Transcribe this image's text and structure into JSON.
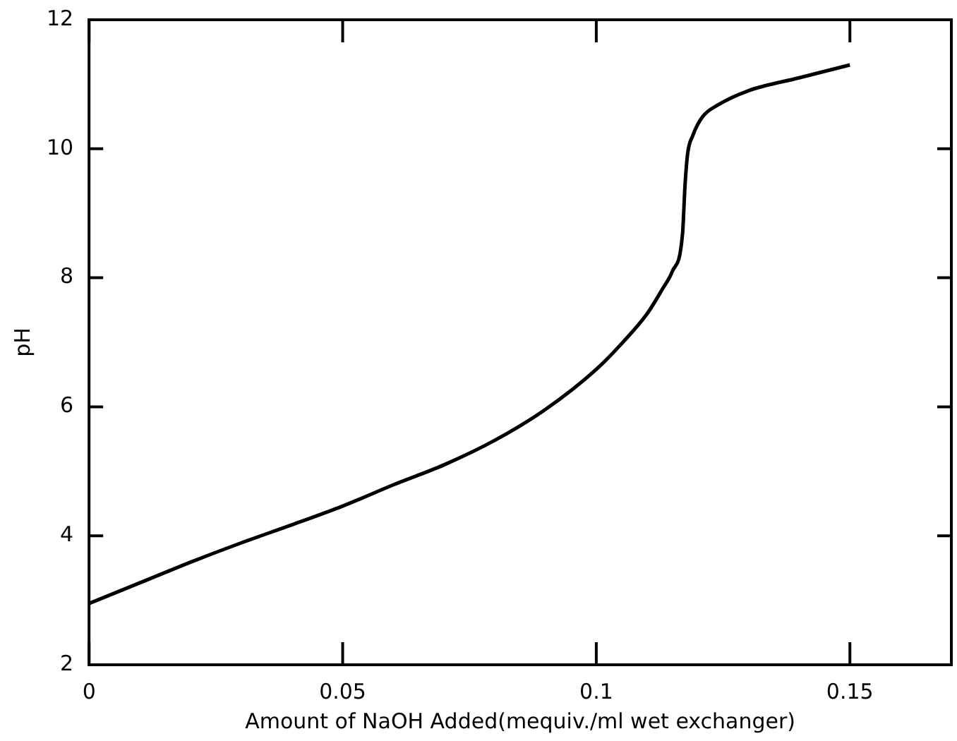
{
  "chart_data": {
    "type": "line",
    "xlabel": "Amount of NaOH Added(mequiv./ml wet exchanger)",
    "ylabel": "pH",
    "x": [
      0,
      0.01,
      0.02,
      0.03,
      0.04,
      0.05,
      0.06,
      0.07,
      0.08,
      0.09,
      0.1,
      0.105,
      0.11,
      0.113,
      0.115,
      0.117,
      0.1175,
      0.118,
      0.119,
      0.121,
      0.124,
      0.13,
      0.14,
      0.15
    ],
    "values": [
      2.95,
      3.27,
      3.59,
      3.89,
      4.17,
      4.46,
      4.79,
      5.1,
      5.48,
      5.96,
      6.58,
      6.98,
      7.44,
      7.82,
      8.1,
      8.68,
      9.44,
      9.92,
      10.2,
      10.5,
      10.68,
      10.9,
      11.1,
      11.3
    ],
    "color": "#000000",
    "xlim": [
      0,
      0.17
    ],
    "xticks": [
      0,
      0.05,
      0.1,
      0.15
    ],
    "ylim": [
      2,
      12
    ],
    "yticks": [
      2,
      4,
      6,
      8,
      10,
      12
    ],
    "marker": "none",
    "line_style": "solid"
  }
}
